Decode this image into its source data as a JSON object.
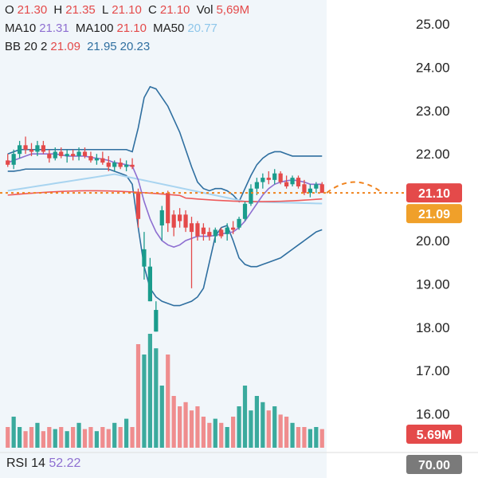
{
  "colors": {
    "up": "#1a9c8c",
    "down": "#ef7a7a",
    "down_strong": "#e44a4a",
    "ma10": "#8e6fd1",
    "ma100": "#ef5a5a",
    "ma50": "#a8d4f0",
    "bb": "#2f6fa0",
    "value": "#e44a4a",
    "close_line": "#f0831e",
    "orange_badge": "#f0a02a",
    "grey_badge": "#7a7a7a"
  },
  "legend": {
    "o_label": "O",
    "o_value": "21.30",
    "h_label": "H",
    "h_value": "21.35",
    "l_label": "L",
    "l_value": "21.10",
    "c_label": "C",
    "c_value": "21.10",
    "vol_label": "Vol",
    "vol_value": "5,69M",
    "ma10_label": "MA10",
    "ma10_value": "21.31",
    "ma100_label": "MA100",
    "ma100_value": "21.10",
    "ma50_label": "MA50",
    "ma50_value": "20.77",
    "bb_label": "BB 20 2",
    "bb_v1": "21.09",
    "bb_v2": "21.95",
    "bb_v3": "20.23"
  },
  "rsi": {
    "label": "RSI 14",
    "value": "52.22"
  },
  "badges": {
    "last_price": "21.10",
    "ma_price": "21.09",
    "volume": "5.69M",
    "rsi_level": "70.00"
  },
  "chart_data": {
    "type": "candlestick",
    "y_ticks": [
      "25.00",
      "24.00",
      "23.00",
      "22.00",
      "21.00",
      "20.00",
      "19.00",
      "18.00",
      "17.00",
      "16.00"
    ],
    "ylim": [
      15.6,
      25.4
    ],
    "candles": [
      [
        21.85,
        22.0,
        21.7,
        21.75
      ],
      [
        21.75,
        22.1,
        21.65,
        22.0
      ],
      [
        22.0,
        22.3,
        21.9,
        22.2
      ],
      [
        22.2,
        22.4,
        22.0,
        22.1
      ],
      [
        22.1,
        22.25,
        21.95,
        22.05
      ],
      [
        22.05,
        22.3,
        21.95,
        22.2
      ],
      [
        22.2,
        22.3,
        22.0,
        22.05
      ],
      [
        22.0,
        22.1,
        21.8,
        21.9
      ],
      [
        21.9,
        22.15,
        21.85,
        22.05
      ],
      [
        22.05,
        22.15,
        21.9,
        21.95
      ],
      [
        21.95,
        22.1,
        21.8,
        22.0
      ],
      [
        22.0,
        22.1,
        21.85,
        21.95
      ],
      [
        21.95,
        22.15,
        21.85,
        22.05
      ],
      [
        22.05,
        22.15,
        21.9,
        21.95
      ],
      [
        21.95,
        22.05,
        21.8,
        21.85
      ],
      [
        21.85,
        22.0,
        21.75,
        21.9
      ],
      [
        21.9,
        22.05,
        21.75,
        21.8
      ],
      [
        21.8,
        21.95,
        21.6,
        21.7
      ],
      [
        21.7,
        21.85,
        21.6,
        21.8
      ],
      [
        21.8,
        21.9,
        21.65,
        21.7
      ],
      [
        21.7,
        21.85,
        21.6,
        21.75
      ],
      [
        21.75,
        21.9,
        21.65,
        21.7
      ],
      [
        21.1,
        21.2,
        20.3,
        20.5
      ],
      [
        19.4,
        20.2,
        19.1,
        19.8
      ],
      [
        18.6,
        19.6,
        18.6,
        19.4
      ],
      [
        17.9,
        18.6,
        17.9,
        18.4
      ],
      [
        20.35,
        20.8,
        20.0,
        20.7
      ],
      [
        21.1,
        21.15,
        20.2,
        20.4
      ],
      [
        20.6,
        20.7,
        20.1,
        20.3
      ],
      [
        20.6,
        20.75,
        20.3,
        20.45
      ],
      [
        20.6,
        20.7,
        20.2,
        20.3
      ],
      [
        20.4,
        20.55,
        18.9,
        20.2
      ],
      [
        20.4,
        20.45,
        20.0,
        20.1
      ],
      [
        20.3,
        20.4,
        20.0,
        20.15
      ],
      [
        20.2,
        20.3,
        20.0,
        20.1
      ],
      [
        20.1,
        20.3,
        19.95,
        20.25
      ],
      [
        20.25,
        20.3,
        20.05,
        20.1
      ],
      [
        20.15,
        20.4,
        20.0,
        20.3
      ],
      [
        20.3,
        20.45,
        20.15,
        20.25
      ],
      [
        20.3,
        20.55,
        20.25,
        20.5
      ],
      [
        20.5,
        20.9,
        20.45,
        20.85
      ],
      [
        20.85,
        21.3,
        20.8,
        21.2
      ],
      [
        21.2,
        21.45,
        21.05,
        21.35
      ],
      [
        21.35,
        21.55,
        21.2,
        21.45
      ],
      [
        21.45,
        21.6,
        21.3,
        21.4
      ],
      [
        21.4,
        21.65,
        21.3,
        21.55
      ],
      [
        21.55,
        21.6,
        21.3,
        21.35
      ],
      [
        21.35,
        21.5,
        21.2,
        21.25
      ],
      [
        21.3,
        21.5,
        21.25,
        21.45
      ],
      [
        21.45,
        21.5,
        21.2,
        21.25
      ],
      [
        21.3,
        21.4,
        21.05,
        21.1
      ],
      [
        21.1,
        21.3,
        21.0,
        21.2
      ],
      [
        21.2,
        21.35,
        21.1,
        21.3
      ],
      [
        21.3,
        21.35,
        21.1,
        21.1
      ]
    ],
    "volume_heights_relative": [
      0.1,
      0.15,
      0.1,
      0.08,
      0.1,
      0.12,
      0.08,
      0.1,
      0.09,
      0.1,
      0.08,
      0.1,
      0.12,
      0.09,
      0.1,
      0.08,
      0.1,
      0.09,
      0.12,
      0.1,
      0.14,
      0.1,
      0.5,
      0.45,
      0.55,
      0.48,
      0.3,
      0.45,
      0.25,
      0.2,
      0.22,
      0.18,
      0.2,
      0.15,
      0.12,
      0.14,
      0.12,
      0.1,
      0.15,
      0.2,
      0.3,
      0.18,
      0.25,
      0.22,
      0.18,
      0.2,
      0.16,
      0.15,
      0.12,
      0.1,
      0.1,
      0.09,
      0.1,
      0.09
    ]
  }
}
